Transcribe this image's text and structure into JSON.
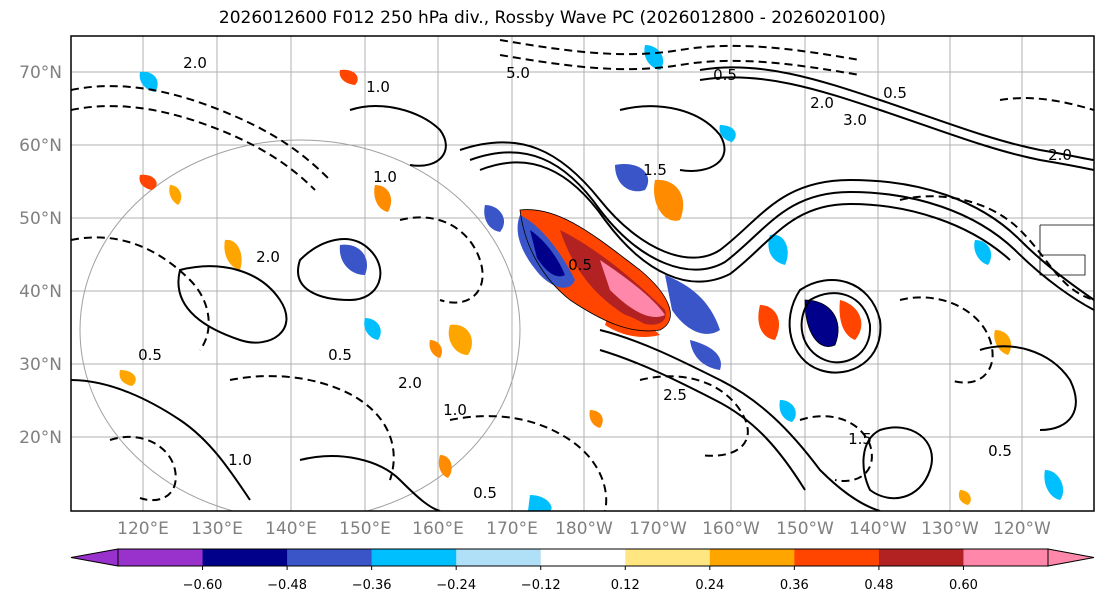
{
  "title": "2026012600 F012 250 hPa div., Rossby Wave PC (2026012800 - 2026020100)",
  "lat_labels": [
    "70°N",
    "60°N",
    "50°N",
    "40°N",
    "30°N",
    "20°N"
  ],
  "lon_labels": [
    "120°E",
    "130°E",
    "140°E",
    "150°E",
    "160°E",
    "170°E",
    "180°W",
    "170°W",
    "160°W",
    "150°W",
    "140°W",
    "130°W",
    "120°W"
  ],
  "colorbar": {
    "colors": [
      "#9932cc",
      "#00008b",
      "#3a55c8",
      "#00bfff",
      "#b0e0f8",
      "#ffffff",
      "#ffe680",
      "#ffa500",
      "#ff4500",
      "#b22222",
      "#ff88aa"
    ],
    "ticks": [
      "−0.60",
      "−0.48",
      "−0.36",
      "−0.24",
      "−0.12",
      "0.12",
      "0.24",
      "0.36",
      "0.48",
      "0.60"
    ]
  },
  "contour_labels": [
    "2.0",
    "5.0",
    "1.0",
    "0.5",
    "3.0",
    "2.0",
    "1.5",
    "0.5",
    "2.0",
    "1.0",
    "2.0",
    "0.5",
    "2.5",
    "0.5",
    "2.0",
    "1.0",
    "1.5",
    "0.5",
    "0.5",
    "1.0",
    "0.5"
  ]
}
